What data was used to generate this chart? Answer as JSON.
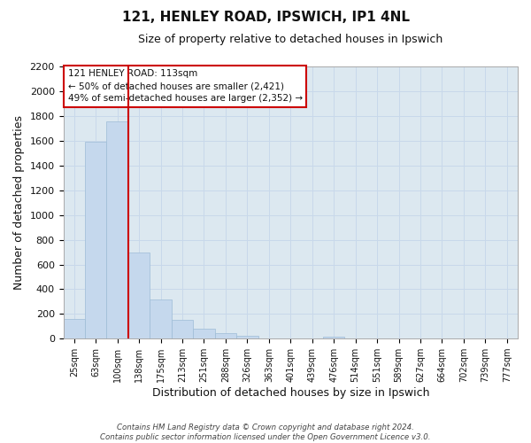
{
  "title": "121, HENLEY ROAD, IPSWICH, IP1 4NL",
  "subtitle": "Size of property relative to detached houses in Ipswich",
  "xlabel": "Distribution of detached houses by size in Ipswich",
  "ylabel": "Number of detached properties",
  "bar_labels": [
    "25sqm",
    "63sqm",
    "100sqm",
    "138sqm",
    "175sqm",
    "213sqm",
    "251sqm",
    "288sqm",
    "326sqm",
    "363sqm",
    "401sqm",
    "439sqm",
    "476sqm",
    "514sqm",
    "551sqm",
    "589sqm",
    "627sqm",
    "664sqm",
    "702sqm",
    "739sqm",
    "777sqm"
  ],
  "bar_values": [
    160,
    1590,
    1760,
    700,
    315,
    155,
    80,
    45,
    25,
    0,
    0,
    0,
    15,
    0,
    0,
    0,
    0,
    0,
    0,
    0,
    0
  ],
  "bar_color": "#c5d8ed",
  "bar_edge_color": "#9dbcd6",
  "vline_color": "#cc0000",
  "vline_x_idx": 2,
  "ylim": [
    0,
    2200
  ],
  "yticks": [
    0,
    200,
    400,
    600,
    800,
    1000,
    1200,
    1400,
    1600,
    1800,
    2000,
    2200
  ],
  "annotation_title": "121 HENLEY ROAD: 113sqm",
  "annotation_line1": "← 50% of detached houses are smaller (2,421)",
  "annotation_line2": "49% of semi-detached houses are larger (2,352) →",
  "annotation_box_facecolor": "#ffffff",
  "annotation_box_edgecolor": "#cc0000",
  "footer1": "Contains HM Land Registry data © Crown copyright and database right 2024.",
  "footer2": "Contains public sector information licensed under the Open Government Licence v3.0.",
  "grid_color": "#c8d8ea",
  "background_color": "#ffffff",
  "plot_bg_color": "#dce8f0"
}
